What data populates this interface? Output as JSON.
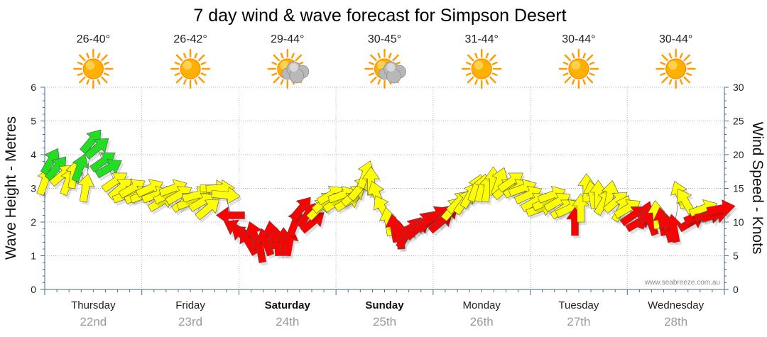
{
  "title": "7 day wind & wave forecast for Simpson Desert",
  "watermark": "www.seabreeze.com.au",
  "colors": {
    "green": "#22dd22",
    "yellow": "#ffff00",
    "red": "#ff0000",
    "grid": "#b5b5b5",
    "axis": "#4a6a88",
    "sun": "#ffb000",
    "cloud": "#aaaaaa"
  },
  "days": [
    {
      "name": "Thursday",
      "date": "22nd",
      "temp": "26-40°",
      "icon": "sun-icon",
      "bold": false
    },
    {
      "name": "Friday",
      "date": "23rd",
      "temp": "26-42°",
      "icon": "sun-icon",
      "bold": false
    },
    {
      "name": "Saturday",
      "date": "24th",
      "temp": "29-44°",
      "icon": "sun-cloud-icon",
      "bold": true
    },
    {
      "name": "Sunday",
      "date": "25th",
      "temp": "30-45°",
      "icon": "sun-cloud-icon",
      "bold": true
    },
    {
      "name": "Monday",
      "date": "26th",
      "temp": "31-44°",
      "icon": "sun-icon",
      "bold": false
    },
    {
      "name": "Tuesday",
      "date": "27th",
      "temp": "30-44°",
      "icon": "sun-icon",
      "bold": false
    },
    {
      "name": "Wednesday",
      "date": "28th",
      "temp": "30-44°",
      "icon": "sun-icon",
      "bold": false
    }
  ],
  "chart_data": {
    "type": "line",
    "title": "7 day wind & wave forecast for Simpson Desert",
    "ylabel_left": "Wave Height - Metres",
    "ylabel_right": "Wind Speed - Knots",
    "ylim_left": [
      0,
      6
    ],
    "ylim_right": [
      0,
      30
    ],
    "yticks_left": [
      "0",
      "1",
      "2",
      "3",
      "4",
      "5",
      "6"
    ],
    "yticks_right": [
      "0",
      "5",
      "10",
      "15",
      "20",
      "25",
      "30"
    ],
    "x_unit": "days from start of Thursday 22nd",
    "xlim": [
      0,
      7
    ],
    "grid": true,
    "series": [
      {
        "name": "Wind speed (knots), arrows show direction",
        "points": [
          {
            "x": 0.0,
            "speed": 16,
            "dir": 200,
            "level": "yellow"
          },
          {
            "x": 0.06,
            "speed": 19,
            "dir": 210,
            "level": "green"
          },
          {
            "x": 0.12,
            "speed": 18,
            "dir": 220,
            "level": "green"
          },
          {
            "x": 0.18,
            "speed": 17,
            "dir": 230,
            "level": "yellow"
          },
          {
            "x": 0.24,
            "speed": 16,
            "dir": 200,
            "level": "yellow"
          },
          {
            "x": 0.3,
            "speed": 17,
            "dir": 190,
            "level": "yellow"
          },
          {
            "x": 0.36,
            "speed": 18,
            "dir": 200,
            "level": "green"
          },
          {
            "x": 0.42,
            "speed": 15,
            "dir": 190,
            "level": "yellow"
          },
          {
            "x": 0.48,
            "speed": 22,
            "dir": 220,
            "level": "green"
          },
          {
            "x": 0.54,
            "speed": 21,
            "dir": 230,
            "level": "green"
          },
          {
            "x": 0.6,
            "speed": 19,
            "dir": 235,
            "level": "green"
          },
          {
            "x": 0.66,
            "speed": 18,
            "dir": 240,
            "level": "green"
          },
          {
            "x": 0.72,
            "speed": 16,
            "dir": 235,
            "level": "yellow"
          },
          {
            "x": 0.78,
            "speed": 15,
            "dir": 230,
            "level": "yellow"
          },
          {
            "x": 0.84,
            "speed": 14,
            "dir": 250,
            "level": "yellow"
          },
          {
            "x": 0.9,
            "speed": 15,
            "dir": 240,
            "level": "yellow"
          },
          {
            "x": 0.96,
            "speed": 14,
            "dir": 245,
            "level": "yellow"
          },
          {
            "x": 1.02,
            "speed": 14,
            "dir": 250,
            "level": "yellow"
          },
          {
            "x": 1.08,
            "speed": 15,
            "dir": 245,
            "level": "yellow"
          },
          {
            "x": 1.14,
            "speed": 14,
            "dir": 250,
            "level": "yellow"
          },
          {
            "x": 1.2,
            "speed": 13,
            "dir": 240,
            "level": "yellow"
          },
          {
            "x": 1.26,
            "speed": 14,
            "dir": 245,
            "level": "yellow"
          },
          {
            "x": 1.32,
            "speed": 15,
            "dir": 250,
            "level": "yellow"
          },
          {
            "x": 1.38,
            "speed": 14,
            "dir": 240,
            "level": "yellow"
          },
          {
            "x": 1.44,
            "speed": 13,
            "dir": 235,
            "level": "yellow"
          },
          {
            "x": 1.5,
            "speed": 13,
            "dir": 250,
            "level": "yellow"
          },
          {
            "x": 1.56,
            "speed": 14,
            "dir": 255,
            "level": "yellow"
          },
          {
            "x": 1.62,
            "speed": 13,
            "dir": 240,
            "level": "yellow"
          },
          {
            "x": 1.68,
            "speed": 12,
            "dir": 230,
            "level": "yellow"
          },
          {
            "x": 1.74,
            "speed": 15,
            "dir": 270,
            "level": "yellow"
          },
          {
            "x": 1.8,
            "speed": 15,
            "dir": 268,
            "level": "yellow"
          },
          {
            "x": 1.86,
            "speed": 14,
            "dir": 275,
            "level": "yellow"
          },
          {
            "x": 1.92,
            "speed": 11,
            "dir": 90,
            "level": "red"
          },
          {
            "x": 1.98,
            "speed": 9,
            "dir": 120,
            "level": "red"
          },
          {
            "x": 2.04,
            "speed": 8,
            "dir": 130,
            "level": "red"
          },
          {
            "x": 2.1,
            "speed": 7,
            "dir": 150,
            "level": "red"
          },
          {
            "x": 2.16,
            "speed": 8,
            "dir": 160,
            "level": "red"
          },
          {
            "x": 2.22,
            "speed": 6,
            "dir": 170,
            "level": "red"
          },
          {
            "x": 2.28,
            "speed": 7,
            "dir": 160,
            "level": "red"
          },
          {
            "x": 2.34,
            "speed": 8,
            "dir": 170,
            "level": "red"
          },
          {
            "x": 2.4,
            "speed": 7,
            "dir": 175,
            "level": "red"
          },
          {
            "x": 2.46,
            "speed": 7,
            "dir": 180,
            "level": "red"
          },
          {
            "x": 2.52,
            "speed": 7,
            "dir": 190,
            "level": "red"
          },
          {
            "x": 2.58,
            "speed": 10,
            "dir": 200,
            "level": "red"
          },
          {
            "x": 2.64,
            "speed": 12,
            "dir": 220,
            "level": "red"
          },
          {
            "x": 2.7,
            "speed": 11,
            "dir": 215,
            "level": "red"
          },
          {
            "x": 2.76,
            "speed": 10,
            "dir": 230,
            "level": "red"
          },
          {
            "x": 2.82,
            "speed": 12,
            "dir": 225,
            "level": "yellow"
          },
          {
            "x": 2.88,
            "speed": 13,
            "dir": 230,
            "level": "yellow"
          },
          {
            "x": 2.94,
            "speed": 14,
            "dir": 240,
            "level": "yellow"
          },
          {
            "x": 3.0,
            "speed": 13,
            "dir": 235,
            "level": "yellow"
          },
          {
            "x": 3.06,
            "speed": 14,
            "dir": 250,
            "level": "yellow"
          },
          {
            "x": 3.12,
            "speed": 13,
            "dir": 240,
            "level": "yellow"
          },
          {
            "x": 3.18,
            "speed": 14,
            "dir": 230,
            "level": "yellow"
          },
          {
            "x": 3.24,
            "speed": 15,
            "dir": 220,
            "level": "yellow"
          },
          {
            "x": 3.3,
            "speed": 17,
            "dir": 200,
            "level": "yellow"
          },
          {
            "x": 3.36,
            "speed": 16,
            "dir": 180,
            "level": "yellow"
          },
          {
            "x": 3.42,
            "speed": 14,
            "dir": 160,
            "level": "yellow"
          },
          {
            "x": 3.48,
            "speed": 12,
            "dir": 150,
            "level": "yellow"
          },
          {
            "x": 3.54,
            "speed": 10,
            "dir": 170,
            "level": "yellow"
          },
          {
            "x": 3.6,
            "speed": 9,
            "dir": 170,
            "level": "red"
          },
          {
            "x": 3.66,
            "speed": 8,
            "dir": 175,
            "level": "red"
          },
          {
            "x": 3.72,
            "speed": 8,
            "dir": 210,
            "level": "red"
          },
          {
            "x": 3.78,
            "speed": 9,
            "dir": 220,
            "level": "red"
          },
          {
            "x": 3.84,
            "speed": 9,
            "dir": 230,
            "level": "red"
          },
          {
            "x": 3.9,
            "speed": 10,
            "dir": 225,
            "level": "red"
          },
          {
            "x": 3.96,
            "speed": 10,
            "dir": 235,
            "level": "red"
          },
          {
            "x": 4.02,
            "speed": 11,
            "dir": 240,
            "level": "red"
          },
          {
            "x": 4.08,
            "speed": 10,
            "dir": 230,
            "level": "red"
          },
          {
            "x": 4.14,
            "speed": 11,
            "dir": 225,
            "level": "red"
          },
          {
            "x": 4.2,
            "speed": 12,
            "dir": 220,
            "level": "yellow"
          },
          {
            "x": 4.26,
            "speed": 13,
            "dir": 225,
            "level": "yellow"
          },
          {
            "x": 4.32,
            "speed": 13,
            "dir": 215,
            "level": "yellow"
          },
          {
            "x": 4.38,
            "speed": 14,
            "dir": 210,
            "level": "yellow"
          },
          {
            "x": 4.44,
            "speed": 15,
            "dir": 200,
            "level": "yellow"
          },
          {
            "x": 4.5,
            "speed": 15,
            "dir": 195,
            "level": "yellow"
          },
          {
            "x": 4.56,
            "speed": 15,
            "dir": 190,
            "level": "yellow"
          },
          {
            "x": 4.62,
            "speed": 16,
            "dir": 180,
            "level": "yellow"
          },
          {
            "x": 4.68,
            "speed": 16,
            "dir": 200,
            "level": "yellow"
          },
          {
            "x": 4.74,
            "speed": 15,
            "dir": 230,
            "level": "yellow"
          },
          {
            "x": 4.8,
            "speed": 16,
            "dir": 235,
            "level": "yellow"
          },
          {
            "x": 4.86,
            "speed": 15,
            "dir": 240,
            "level": "yellow"
          },
          {
            "x": 4.92,
            "speed": 15,
            "dir": 250,
            "level": "yellow"
          },
          {
            "x": 4.98,
            "speed": 14,
            "dir": 245,
            "level": "yellow"
          },
          {
            "x": 5.04,
            "speed": 13,
            "dir": 240,
            "level": "yellow"
          },
          {
            "x": 5.1,
            "speed": 12,
            "dir": 250,
            "level": "yellow"
          },
          {
            "x": 5.16,
            "speed": 13,
            "dir": 245,
            "level": "yellow"
          },
          {
            "x": 5.22,
            "speed": 14,
            "dir": 250,
            "level": "yellow"
          },
          {
            "x": 5.28,
            "speed": 13,
            "dir": 240,
            "level": "yellow"
          },
          {
            "x": 5.34,
            "speed": 12,
            "dir": 235,
            "level": "yellow"
          },
          {
            "x": 5.4,
            "speed": 12,
            "dir": 245,
            "level": "yellow"
          },
          {
            "x": 5.46,
            "speed": 10,
            "dir": 180,
            "level": "red"
          },
          {
            "x": 5.52,
            "speed": 12,
            "dir": 180,
            "level": "yellow"
          },
          {
            "x": 5.58,
            "speed": 15,
            "dir": 180,
            "level": "yellow"
          },
          {
            "x": 5.64,
            "speed": 14,
            "dir": 170,
            "level": "yellow"
          },
          {
            "x": 5.7,
            "speed": 14,
            "dir": 180,
            "level": "yellow"
          },
          {
            "x": 5.76,
            "speed": 13,
            "dir": 210,
            "level": "yellow"
          },
          {
            "x": 5.82,
            "speed": 14,
            "dir": 190,
            "level": "yellow"
          },
          {
            "x": 5.88,
            "speed": 13,
            "dir": 230,
            "level": "yellow"
          },
          {
            "x": 5.94,
            "speed": 12,
            "dir": 210,
            "level": "yellow"
          },
          {
            "x": 6.0,
            "speed": 12,
            "dir": 240,
            "level": "yellow"
          },
          {
            "x": 6.06,
            "speed": 11,
            "dir": 235,
            "level": "red"
          },
          {
            "x": 6.12,
            "speed": 10,
            "dir": 240,
            "level": "red"
          },
          {
            "x": 6.18,
            "speed": 11,
            "dir": 200,
            "level": "red"
          },
          {
            "x": 6.24,
            "speed": 10,
            "dir": 160,
            "level": "red"
          },
          {
            "x": 6.3,
            "speed": 11,
            "dir": 175,
            "level": "yellow"
          },
          {
            "x": 6.36,
            "speed": 10,
            "dir": 170,
            "level": "red"
          },
          {
            "x": 6.42,
            "speed": 9,
            "dir": 165,
            "level": "red"
          },
          {
            "x": 6.48,
            "speed": 9,
            "dir": 170,
            "level": "red"
          },
          {
            "x": 6.54,
            "speed": 14,
            "dir": 160,
            "level": "yellow"
          },
          {
            "x": 6.6,
            "speed": 13,
            "dir": 150,
            "level": "yellow"
          },
          {
            "x": 6.66,
            "speed": 10,
            "dir": 240,
            "level": "red"
          },
          {
            "x": 6.72,
            "speed": 11,
            "dir": 245,
            "level": "red"
          },
          {
            "x": 6.78,
            "speed": 12,
            "dir": 250,
            "level": "yellow"
          },
          {
            "x": 6.84,
            "speed": 11,
            "dir": 260,
            "level": "red"
          },
          {
            "x": 6.9,
            "speed": 11,
            "dir": 255,
            "level": "red"
          },
          {
            "x": 6.96,
            "speed": 12,
            "dir": 260,
            "level": "red"
          }
        ]
      }
    ]
  }
}
